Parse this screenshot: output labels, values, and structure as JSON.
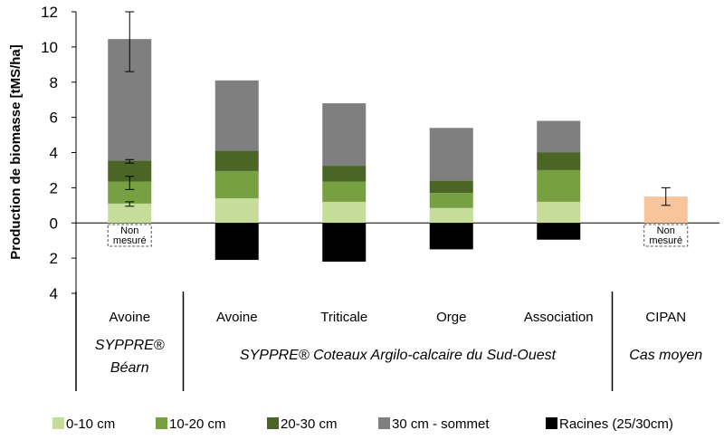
{
  "chart_data": {
    "type": "bar",
    "stacked": true,
    "ylabel": "Production de biomasse [tMS/ha]",
    "ylim": [
      -4,
      12
    ],
    "y_ticks": [
      {
        "value": 12,
        "label": "12"
      },
      {
        "value": 10,
        "label": "10"
      },
      {
        "value": 8,
        "label": "8"
      },
      {
        "value": 6,
        "label": "6"
      },
      {
        "value": 4,
        "label": "4"
      },
      {
        "value": 2,
        "label": "2"
      },
      {
        "value": 0,
        "label": "0"
      },
      {
        "value": -2,
        "label": "2"
      },
      {
        "value": -4,
        "label": "4"
      }
    ],
    "categories": [
      "Avoine",
      "Avoine",
      "Triticale",
      "Orge",
      "Association",
      "CIPAN"
    ],
    "groups": [
      {
        "label_lines": [
          "SYPPRE®",
          "Béarn"
        ],
        "from": 0,
        "to": 0
      },
      {
        "label_lines": [
          "SYPPRE® Coteaux Argilo-calcaire  du Sud-Ouest"
        ],
        "from": 1,
        "to": 4
      },
      {
        "label_lines": [
          "Cas moyen"
        ],
        "from": 5,
        "to": 5
      }
    ],
    "series": [
      {
        "name": "0-10 cm",
        "color": "#c5dc9b",
        "values": [
          1.1,
          1.4,
          1.2,
          0.85,
          1.2,
          null
        ]
      },
      {
        "name": "10-20 cm",
        "color": "#77a043",
        "values": [
          1.25,
          1.55,
          1.15,
          0.85,
          1.8,
          null
        ]
      },
      {
        "name": "20-30 cm",
        "color": "#4a6526",
        "values": [
          1.2,
          1.15,
          0.9,
          0.7,
          1.0,
          null
        ]
      },
      {
        "name": "30 cm - sommet",
        "color": "#7f7f7f",
        "values": [
          6.9,
          4.0,
          3.55,
          3.0,
          1.8,
          null
        ]
      },
      {
        "name": "Racines (25/30cm)",
        "color": "#000000",
        "values": [
          null,
          -2.1,
          -2.2,
          -1.5,
          -0.95,
          null
        ]
      }
    ],
    "extra_bars": [
      {
        "category_index": 5,
        "value": 1.5,
        "color": "#f7c49c",
        "error": [
          1.0,
          2.0
        ]
      }
    ],
    "error_bars": [
      {
        "category_index": 0,
        "at": 1.1,
        "low": 0.95,
        "high": 1.2
      },
      {
        "category_index": 0,
        "at": 2.3,
        "low": 1.9,
        "high": 2.65
      },
      {
        "category_index": 0,
        "at": 3.5,
        "low": 3.4,
        "high": 3.6
      },
      {
        "category_index": 0,
        "at": 10.4,
        "low": 8.6,
        "high": 12.0
      }
    ],
    "annotations": [
      {
        "category_index": 0,
        "lines": [
          "Non",
          "mesuré"
        ]
      },
      {
        "category_index": 5,
        "lines": [
          "Non",
          "mesuré"
        ]
      }
    ],
    "legend_position": "bottom"
  }
}
